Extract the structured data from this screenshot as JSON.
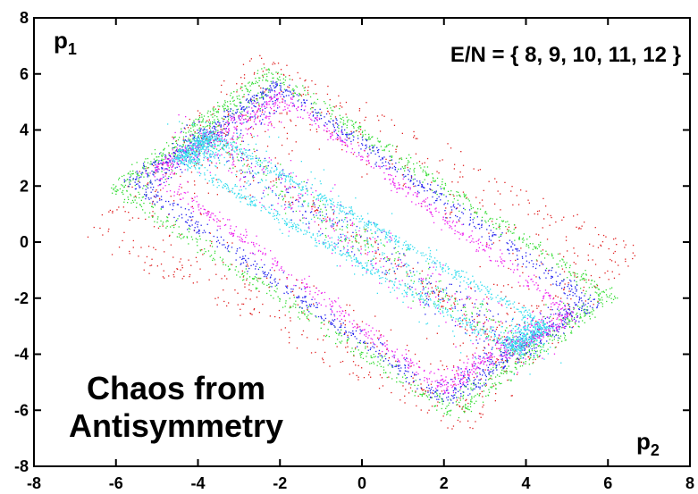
{
  "chart_data": {
    "type": "scatter",
    "title": "",
    "xlabel": "",
    "ylabel": "",
    "xlim": [
      -8,
      8
    ],
    "ylim": [
      -8,
      8
    ],
    "x_ticks": [
      "-8",
      "-6",
      "-4",
      "-2",
      "0",
      "2",
      "4",
      "6",
      "8"
    ],
    "y_ticks": [
      "-8",
      "-6",
      "-4",
      "-2",
      "0",
      "2",
      "4",
      "6",
      "8"
    ],
    "grid": false,
    "corner_labels": {
      "top_left": {
        "base": "p",
        "sub": "1"
      },
      "bottom_right": {
        "base": "p",
        "sub": "2"
      }
    },
    "annotation_top": "E/N = { 8, 9, 10, 11, 12 }",
    "annotation_lines": [
      "Chaos from",
      "Antisymmetry"
    ],
    "series": [
      {
        "energy": 12,
        "color": "#e02020",
        "corners": [
          [
            -6.9,
            0.3
          ],
          [
            -2.6,
            6.9
          ],
          [
            6.9,
            -0.3
          ],
          [
            2.6,
            -6.9
          ]
        ],
        "density": 0.35
      },
      {
        "energy": 11,
        "color": "#33dd33",
        "corners": [
          [
            -6.2,
            1.9
          ],
          [
            -2.3,
            6.3
          ],
          [
            6.2,
            -1.9
          ],
          [
            2.3,
            -6.3
          ]
        ],
        "density": 0.55
      },
      {
        "energy": 10,
        "color": "#2222ee",
        "corners": [
          [
            -5.8,
            2.2
          ],
          [
            -2.1,
            5.8
          ],
          [
            5.8,
            -2.2
          ],
          [
            2.1,
            -5.8
          ]
        ],
        "density": 0.55
      },
      {
        "energy": 9,
        "color": "#ee22ee",
        "corners": [
          [
            -5.3,
            2.6
          ],
          [
            -2.0,
            5.4
          ],
          [
            5.3,
            -2.6
          ],
          [
            2.0,
            -5.4
          ]
        ],
        "density": 0.5
      },
      {
        "energy": 8,
        "color": "#33ddee",
        "corners": [
          [
            -4.6,
            3.0
          ],
          [
            -3.8,
            4.0
          ],
          [
            4.6,
            -3.0
          ],
          [
            3.8,
            -4.0
          ]
        ],
        "density": 0.6
      }
    ]
  }
}
